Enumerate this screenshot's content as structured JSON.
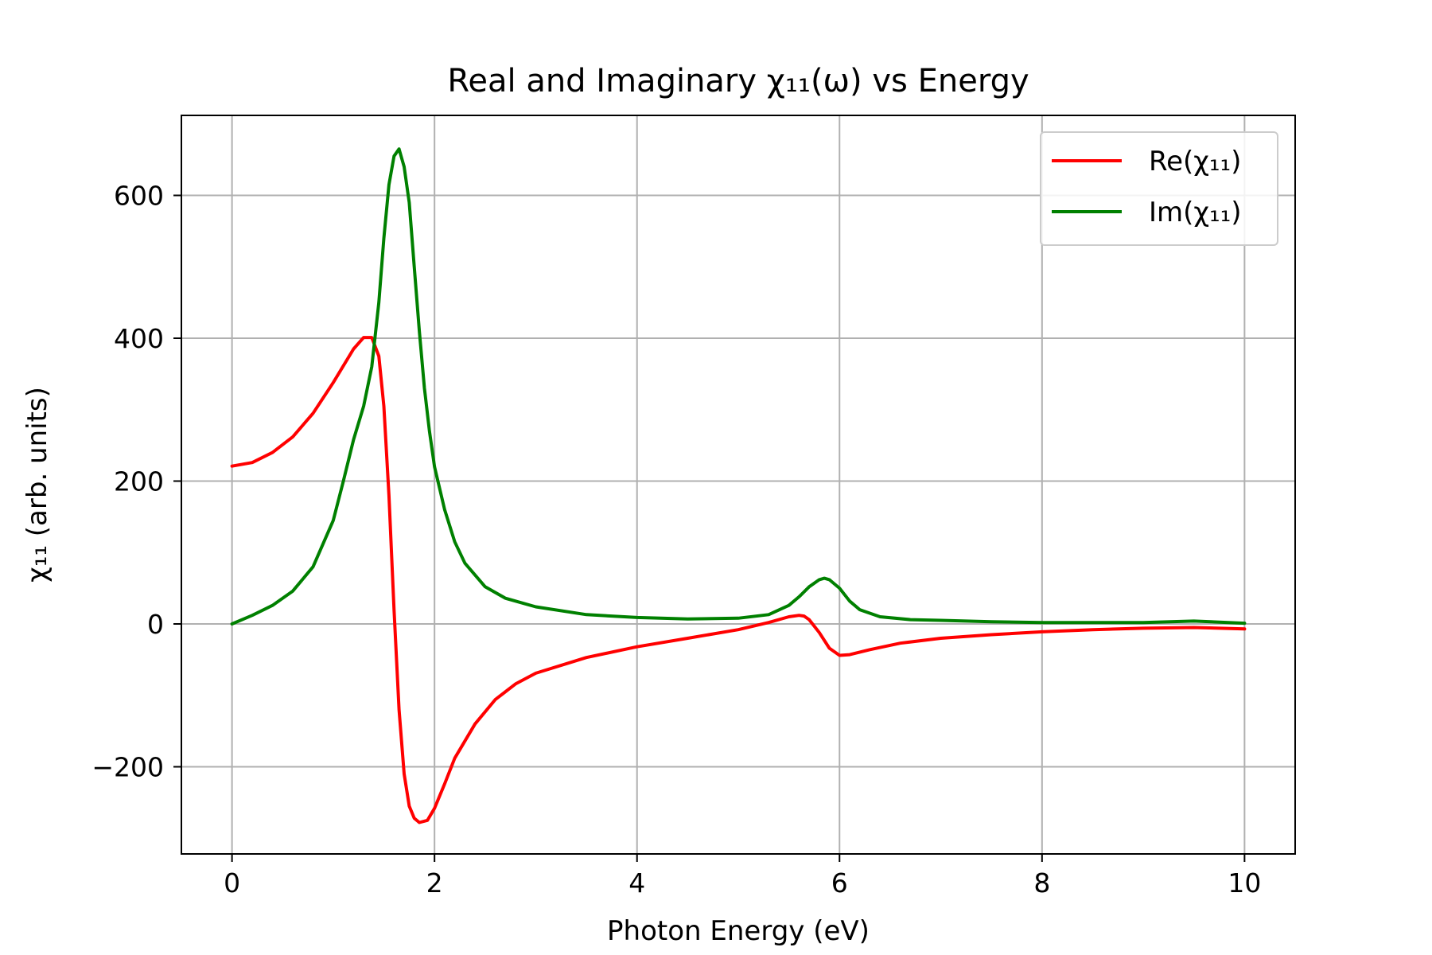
{
  "chart_data": {
    "type": "line",
    "title": "Real and Imaginary χ₁₁(ω) vs Energy",
    "xlabel": "Photon Energy (eV)",
    "ylabel": "χ₁₁ (arb. units)",
    "xlim": [
      -0.5,
      10.5
    ],
    "ylim": [
      -322,
      712
    ],
    "xticks": [
      0,
      2,
      4,
      6,
      8,
      10
    ],
    "yticks": [
      -200,
      0,
      200,
      400,
      600
    ],
    "xtick_labels": [
      "0",
      "2",
      "4",
      "6",
      "8",
      "10"
    ],
    "ytick_labels": [
      "−200",
      "0",
      "200",
      "400",
      "600"
    ],
    "grid": true,
    "legend_position": "top-right",
    "series": [
      {
        "name": "Re(χ₁₁)",
        "color": "#ff0000",
        "x": [
          0,
          0.2,
          0.4,
          0.6,
          0.8,
          1.0,
          1.2,
          1.3,
          1.38,
          1.45,
          1.5,
          1.55,
          1.6,
          1.65,
          1.7,
          1.75,
          1.8,
          1.85,
          1.93,
          2.0,
          2.1,
          2.2,
          2.4,
          2.6,
          2.8,
          3.0,
          3.5,
          4.0,
          4.5,
          5.0,
          5.3,
          5.5,
          5.6,
          5.65,
          5.7,
          5.8,
          5.9,
          6.0,
          6.1,
          6.3,
          6.6,
          7.0,
          7.5,
          8.0,
          8.5,
          9.0,
          9.5,
          10.0
        ],
        "y": [
          221,
          226,
          240,
          262,
          295,
          338,
          385,
          401,
          401,
          375,
          305,
          180,
          20,
          -120,
          -210,
          -255,
          -272,
          -278,
          -275,
          -258,
          -224,
          -188,
          -140,
          -106,
          -84,
          -69,
          -47,
          -32,
          -20,
          -8,
          2,
          10,
          12,
          11,
          6,
          -12,
          -34,
          -44,
          -43,
          -36,
          -27,
          -20,
          -15,
          -11,
          -8,
          -6,
          -5,
          -7
        ]
      },
      {
        "name": "Im(χ₁₁)",
        "color": "#008000",
        "x": [
          0,
          0.2,
          0.4,
          0.6,
          0.8,
          1.0,
          1.1,
          1.2,
          1.3,
          1.38,
          1.45,
          1.5,
          1.55,
          1.6,
          1.65,
          1.7,
          1.75,
          1.8,
          1.85,
          1.9,
          1.95,
          2.0,
          2.1,
          2.2,
          2.3,
          2.5,
          2.7,
          3.0,
          3.5,
          4.0,
          4.5,
          5.0,
          5.3,
          5.5,
          5.6,
          5.7,
          5.8,
          5.85,
          5.9,
          6.0,
          6.1,
          6.2,
          6.4,
          6.7,
          7.0,
          7.5,
          8.0,
          8.5,
          9.0,
          9.5,
          10.0
        ],
        "y": [
          0,
          12,
          26,
          46,
          80,
          145,
          200,
          258,
          305,
          360,
          450,
          540,
          615,
          655,
          665,
          640,
          590,
          500,
          410,
          330,
          270,
          220,
          160,
          115,
          85,
          52,
          36,
          24,
          13,
          9,
          7,
          8,
          13,
          26,
          38,
          52,
          62,
          64,
          62,
          50,
          32,
          20,
          10,
          6,
          5,
          3,
          2,
          2,
          2,
          4,
          1
        ]
      }
    ]
  }
}
